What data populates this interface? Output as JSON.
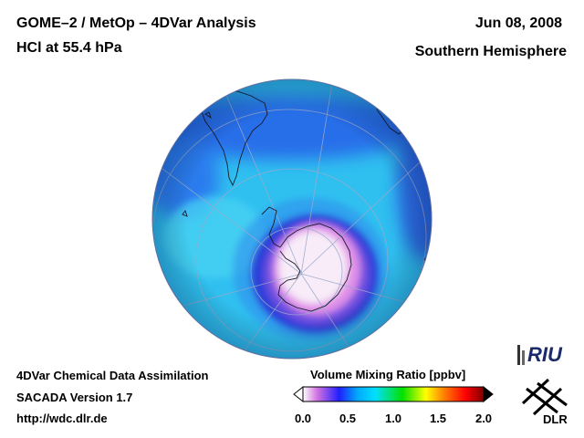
{
  "header": {
    "title_line1": "GOME–2 / MetOp – 4DVar Analysis",
    "title_line2": "HCl at 55.4 hPa",
    "date": "Jun 08, 2008",
    "region": "Southern Hemisphere"
  },
  "footer": {
    "line1": "4DVar Chemical Data Assimilation",
    "line2": "SACADA Version 1.7",
    "line3": "http://wdc.dlr.de"
  },
  "colorbar": {
    "title": "Volume Mixing Ratio [ppbv]",
    "ticks": [
      "0.0",
      "0.5",
      "1.0",
      "1.5",
      "2.0"
    ],
    "range": [
      0.0,
      2.0
    ],
    "colors": [
      "#ffffff",
      "#d070e0",
      "#2020ff",
      "#00e0ff",
      "#00e000",
      "#ffff00",
      "#ff8000",
      "#ff0000",
      "#800000"
    ]
  },
  "logos": {
    "riu_text": "RIU",
    "dlr_text": "DLR"
  },
  "map": {
    "projection": "orthographic",
    "hemisphere": "south",
    "background_color": "#30c0f0",
    "low_value_color": "#2a3fdc",
    "core_color": "#f6e8f6"
  }
}
